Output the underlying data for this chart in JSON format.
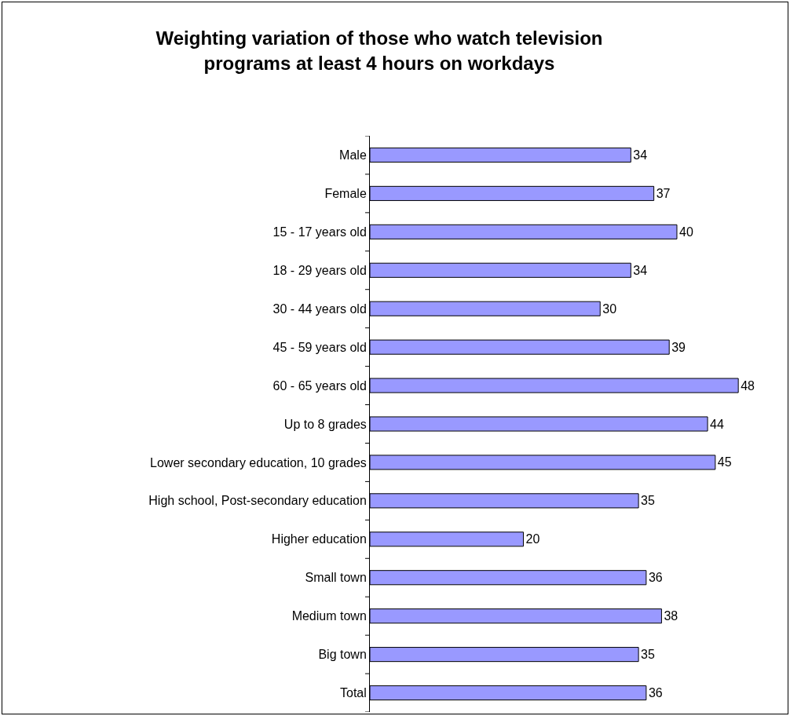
{
  "chart_data": {
    "type": "bar",
    "orientation": "horizontal",
    "title": "Weighting variation of those who watch television programs at least 4 hours on workdays",
    "categories": [
      "Male",
      "Female",
      "15 - 17 years old",
      "18 - 29 years old",
      "30 - 44 years old",
      "45 - 59 years old",
      "60 - 65 years old",
      "Up to 8 grades",
      "Lower secondary education, 10 grades",
      "High school, Post-secondary education",
      "Higher education",
      "Small town",
      "Medium town",
      "Big town",
      "Total"
    ],
    "values": [
      34,
      37,
      40,
      34,
      30,
      39,
      48,
      44,
      45,
      35,
      20,
      36,
      38,
      35,
      36
    ],
    "color": "#9999ff",
    "data_labels": true,
    "grid": false
  }
}
